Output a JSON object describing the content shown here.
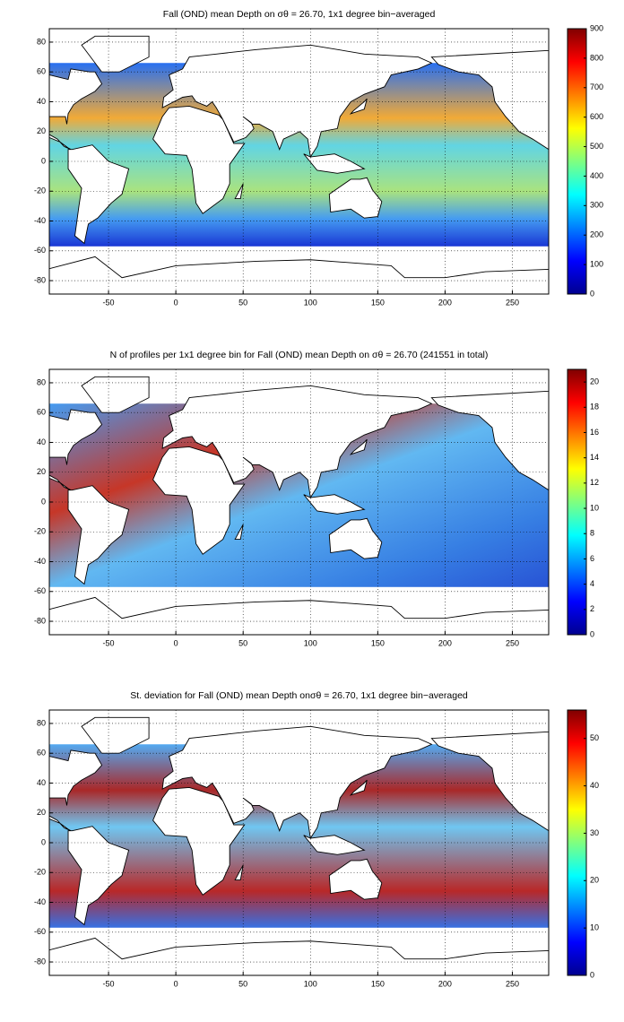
{
  "panels": [
    {
      "title": "Fall (OND) mean Depth on σθ = 26.70, 1x1 degree bin−averaged",
      "xlim": [
        -94,
        277
      ],
      "ylim": [
        -89,
        89
      ],
      "xticks": [
        -50,
        0,
        50,
        100,
        150,
        200,
        250
      ],
      "yticks": [
        -80,
        -60,
        -40,
        -20,
        0,
        20,
        40,
        60,
        80
      ],
      "grid": true,
      "colorbar": {
        "lim": [
          0,
          900
        ],
        "ticks": [
          0,
          100,
          200,
          300,
          400,
          500,
          600,
          700,
          800,
          900
        ]
      }
    },
    {
      "title": "N of profiles per 1x1 degree bin for Fall (OND) mean Depth on σθ = 26.70 (241551 in total)",
      "xlim": [
        -94,
        277
      ],
      "ylim": [
        -89,
        89
      ],
      "xticks": [
        -50,
        0,
        50,
        100,
        150,
        200,
        250
      ],
      "yticks": [
        -80,
        -60,
        -40,
        -20,
        0,
        20,
        40,
        60,
        80
      ],
      "grid": true,
      "colorbar": {
        "lim": [
          0,
          21
        ],
        "ticks": [
          0,
          2,
          4,
          6,
          8,
          10,
          12,
          14,
          16,
          18,
          20
        ]
      }
    },
    {
      "title": "St. deviation for Fall (OND) mean Depth onσθ = 26.70, 1x1 degree bin−averaged",
      "xlim": [
        -94,
        277
      ],
      "ylim": [
        -89,
        89
      ],
      "xticks": [
        -50,
        0,
        50,
        100,
        150,
        200,
        250
      ],
      "yticks": [
        -80,
        -60,
        -40,
        -20,
        0,
        20,
        40,
        60,
        80
      ],
      "grid": true,
      "colorbar": {
        "lim": [
          0,
          56
        ],
        "ticks": [
          0,
          10,
          20,
          30,
          40,
          50
        ]
      }
    }
  ]
}
